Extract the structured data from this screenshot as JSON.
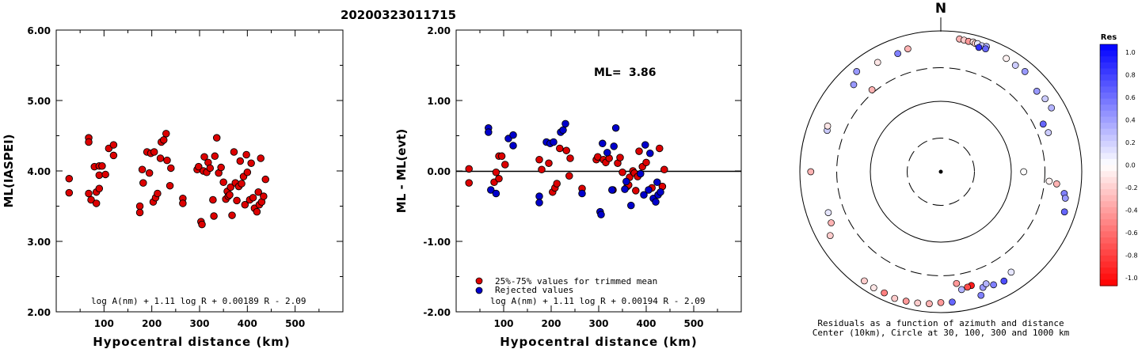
{
  "event_id": "20200323011715",
  "chart_data": [
    {
      "type": "scatter",
      "ylabel": "ML(IASPEI)",
      "xlabel": "Hypocentral distance (km)",
      "xlim": [
        0,
        600
      ],
      "ylim": [
        2.0,
        6.0
      ],
      "xticks": [
        "100",
        "200",
        "300",
        "400",
        "500"
      ],
      "yticks": [
        "2.00",
        "3.00",
        "4.00",
        "5.00",
        "6.00"
      ],
      "formula": "log A(nm) + 1.11 log R + 0.00189 R - 2.09",
      "series": [
        {
          "color": "#dd0000",
          "points": [
            [
              27,
              3.89
            ],
            [
              27,
              3.69
            ],
            [
              68,
              4.47
            ],
            [
              68,
              4.41
            ],
            [
              68,
              3.68
            ],
            [
              73,
              3.59
            ],
            [
              80,
              4.06
            ],
            [
              84,
              3.7
            ],
            [
              84,
              3.54
            ],
            [
              90,
              4.07
            ],
            [
              90,
              3.94
            ],
            [
              90,
              3.75
            ],
            [
              96,
              4.07
            ],
            [
              103,
              3.95
            ],
            [
              110,
              4.32
            ],
            [
              120,
              4.37
            ],
            [
              120,
              4.22
            ],
            [
              175,
              3.5
            ],
            [
              175,
              3.41
            ],
            [
              180,
              4.02
            ],
            [
              182,
              3.83
            ],
            [
              190,
              4.27
            ],
            [
              195,
              3.97
            ],
            [
              198,
              4.25
            ],
            [
              203,
              3.56
            ],
            [
              205,
              4.27
            ],
            [
              208,
              3.62
            ],
            [
              212,
              3.68
            ],
            [
              218,
              4.18
            ],
            [
              220,
              4.41
            ],
            [
              225,
              4.44
            ],
            [
              230,
              4.53
            ],
            [
              232,
              4.15
            ],
            [
              238,
              3.79
            ],
            [
              240,
              4.04
            ],
            [
              265,
              3.61
            ],
            [
              265,
              3.54
            ],
            [
              295,
              4.02
            ],
            [
              298,
              4.06
            ],
            [
              303,
              3.28
            ],
            [
              305,
              3.24
            ],
            [
              308,
              4.0
            ],
            [
              310,
              4.2
            ],
            [
              315,
              3.98
            ],
            [
              318,
              4.12
            ],
            [
              322,
              4.04
            ],
            [
              328,
              3.59
            ],
            [
              330,
              3.36
            ],
            [
              332,
              4.21
            ],
            [
              336,
              4.47
            ],
            [
              340,
              3.97
            ],
            [
              345,
              4.05
            ],
            [
              350,
              3.84
            ],
            [
              355,
              3.6
            ],
            [
              358,
              3.71
            ],
            [
              360,
              3.64
            ],
            [
              363,
              3.66
            ],
            [
              365,
              3.77
            ],
            [
              368,
              3.37
            ],
            [
              372,
              4.27
            ],
            [
              375,
              3.83
            ],
            [
              378,
              3.58
            ],
            [
              382,
              3.78
            ],
            [
              385,
              4.14
            ],
            [
              388,
              3.82
            ],
            [
              392,
              3.92
            ],
            [
              395,
              3.52
            ],
            [
              398,
              4.23
            ],
            [
              400,
              3.98
            ],
            [
              405,
              3.59
            ],
            [
              408,
              4.11
            ],
            [
              412,
              3.62
            ],
            [
              415,
              3.47
            ],
            [
              420,
              3.42
            ],
            [
              423,
              3.7
            ],
            [
              425,
              3.52
            ],
            [
              428,
              4.18
            ],
            [
              430,
              3.56
            ],
            [
              434,
              3.64
            ],
            [
              438,
              3.88
            ]
          ]
        }
      ]
    },
    {
      "type": "scatter",
      "ylabel": "ML - ML(evt)",
      "xlabel": "Hypocentral distance (km)",
      "xlim": [
        0,
        600
      ],
      "ylim": [
        -2.0,
        2.0
      ],
      "xticks": [
        "100",
        "200",
        "300",
        "400",
        "500"
      ],
      "yticks": [
        "-2.00",
        "-1.00",
        "0.00",
        "1.00",
        "2.00"
      ],
      "ml_label": "ML=",
      "ml_value": "3.86",
      "formula": "log A(nm) + 1.11 log R + 0.00194 R - 2.09",
      "legend": [
        {
          "label": "25%-75% values for trimmed mean",
          "color": "#dd0000"
        },
        {
          "label": "Rejected values",
          "color": "#0000cc"
        }
      ],
      "series": [
        {
          "name": "25%-75% values for trimmed mean",
          "color": "#dd0000",
          "points": [
            [
              27,
              0.03
            ],
            [
              27,
              -0.17
            ],
            [
              80,
              -0.16
            ],
            [
              84,
              -0.02
            ],
            [
              90,
              0.21
            ],
            [
              90,
              -0.11
            ],
            [
              96,
              0.21
            ],
            [
              103,
              0.09
            ],
            [
              175,
              0.16
            ],
            [
              180,
              0.02
            ],
            [
              195,
              0.11
            ],
            [
              203,
              -0.3
            ],
            [
              208,
              -0.24
            ],
            [
              212,
              -0.18
            ],
            [
              218,
              0.32
            ],
            [
              232,
              0.29
            ],
            [
              238,
              -0.07
            ],
            [
              240,
              0.18
            ],
            [
              265,
              -0.25
            ],
            [
              295,
              0.16
            ],
            [
              298,
              0.2
            ],
            [
              310,
              0.16
            ],
            [
              315,
              0.12
            ],
            [
              322,
              0.18
            ],
            [
              330,
              -0.27
            ],
            [
              340,
              0.11
            ],
            [
              345,
              0.19
            ],
            [
              350,
              -0.02
            ],
            [
              360,
              -0.22
            ],
            [
              363,
              -0.2
            ],
            [
              365,
              -0.09
            ],
            [
              372,
              0.0
            ],
            [
              375,
              -0.03
            ],
            [
              378,
              -0.28
            ],
            [
              382,
              -0.08
            ],
            [
              385,
              0.28
            ],
            [
              392,
              0.06
            ],
            [
              400,
              0.12
            ],
            [
              412,
              -0.24
            ],
            [
              428,
              0.32
            ],
            [
              434,
              -0.22
            ],
            [
              438,
              0.02
            ]
          ]
        },
        {
          "name": "Rejected values",
          "color": "#0000cc",
          "points": [
            [
              68,
              0.61
            ],
            [
              68,
              0.55
            ],
            [
              73,
              -0.27
            ],
            [
              84,
              -0.32
            ],
            [
              110,
              0.46
            ],
            [
              120,
              0.51
            ],
            [
              120,
              0.36
            ],
            [
              175,
              -0.36
            ],
            [
              175,
              -0.45
            ],
            [
              190,
              0.41
            ],
            [
              198,
              0.39
            ],
            [
              205,
              0.41
            ],
            [
              220,
              0.55
            ],
            [
              225,
              0.58
            ],
            [
              230,
              0.67
            ],
            [
              265,
              -0.32
            ],
            [
              303,
              -0.58
            ],
            [
              305,
              -0.62
            ],
            [
              308,
              0.39
            ],
            [
              318,
              0.26
            ],
            [
              328,
              -0.27
            ],
            [
              332,
              0.35
            ],
            [
              336,
              0.61
            ],
            [
              355,
              -0.26
            ],
            [
              358,
              -0.15
            ],
            [
              368,
              -0.49
            ],
            [
              388,
              -0.04
            ],
            [
              395,
              -0.34
            ],
            [
              398,
              0.37
            ],
            [
              405,
              -0.27
            ],
            [
              408,
              0.25
            ],
            [
              415,
              -0.39
            ],
            [
              420,
              -0.44
            ],
            [
              423,
              -0.16
            ],
            [
              425,
              -0.34
            ],
            [
              430,
              -0.3
            ]
          ]
        }
      ]
    },
    {
      "type": "scatter",
      "subtype": "polar",
      "north_label": "N",
      "caption_line1": "Residuals as a function of azimuth and distance",
      "caption_line2": "Center (10km), Circle at 30, 100, 300 and 1000 km",
      "circles_km": [
        30,
        100,
        300,
        1000
      ],
      "scale_title": "Res",
      "scale_ticks": [
        "1.0",
        "0.8",
        "0.6",
        "0.4",
        "0.2",
        "0.0",
        "-0.2",
        "-0.4",
        "-0.6",
        "-0.8",
        "-1.0"
      ],
      "points_az_dist_res": [
        [
          8,
          800,
          -0.3
        ],
        [
          10,
          790,
          -0.2
        ],
        [
          12,
          780,
          -0.4
        ],
        [
          14,
          790,
          -0.1
        ],
        [
          15,
          770,
          -0.2
        ],
        [
          16,
          780,
          0.1
        ],
        [
          18,
          760,
          0.2
        ],
        [
          20,
          780,
          0.3
        ],
        [
          17,
          700,
          0.8
        ],
        [
          30,
          720,
          -0.05
        ],
        [
          35,
          700,
          0.2
        ],
        [
          40,
          720,
          0.4
        ],
        [
          50,
          600,
          0.4
        ],
        [
          55,
          640,
          0.2
        ],
        [
          60,
          650,
          0.3
        ],
        [
          65,
          400,
          0.6
        ],
        [
          70,
          420,
          0.2
        ],
        [
          95,
          350,
          -0.05
        ],
        [
          100,
          600,
          0.5
        ],
        [
          102,
          640,
          0.4
        ],
        [
          108,
          700,
          0.6
        ],
        [
          96,
          450,
          -0.3
        ],
        [
          150,
          620,
          0.7
        ],
        [
          155,
          590,
          0.5
        ],
        [
          160,
          560,
          0.4
        ],
        [
          145,
          550,
          0.1
        ],
        [
          158,
          520,
          0.3
        ],
        [
          170,
          500,
          0.3
        ],
        [
          172,
          400,
          -0.4
        ],
        [
          165,
          470,
          -0.9
        ],
        [
          167,
          480,
          -0.7
        ],
        [
          162,
          700,
          0.5
        ],
        [
          180,
          720,
          -0.4
        ],
        [
          185,
          760,
          -0.3
        ],
        [
          190,
          780,
          -0.2
        ],
        [
          195,
          800,
          -0.4
        ],
        [
          200,
          820,
          -0.2
        ],
        [
          205,
          790,
          -0.5
        ],
        [
          210,
          800,
          -0.1
        ],
        [
          215,
          780,
          -0.2
        ],
        [
          175,
          720,
          0.6
        ],
        [
          240,
          650,
          -0.2
        ],
        [
          245,
          520,
          -0.3
        ],
        [
          250,
          500,
          0.1
        ],
        [
          270,
          700,
          -0.3
        ],
        [
          290,
          520,
          0.2
        ],
        [
          292,
          540,
          -0.1
        ],
        [
          315,
          560,
          0.4
        ],
        [
          320,
          720,
          0.4
        ],
        [
          330,
          620,
          -0.1
        ],
        [
          320,
          330,
          -0.3
        ],
        [
          340,
          610,
          0.5
        ],
        [
          345,
          640,
          -0.3
        ],
        [
          20,
          720,
          0.6
        ],
        [
          90,
          150,
          0.0
        ]
      ]
    }
  ]
}
